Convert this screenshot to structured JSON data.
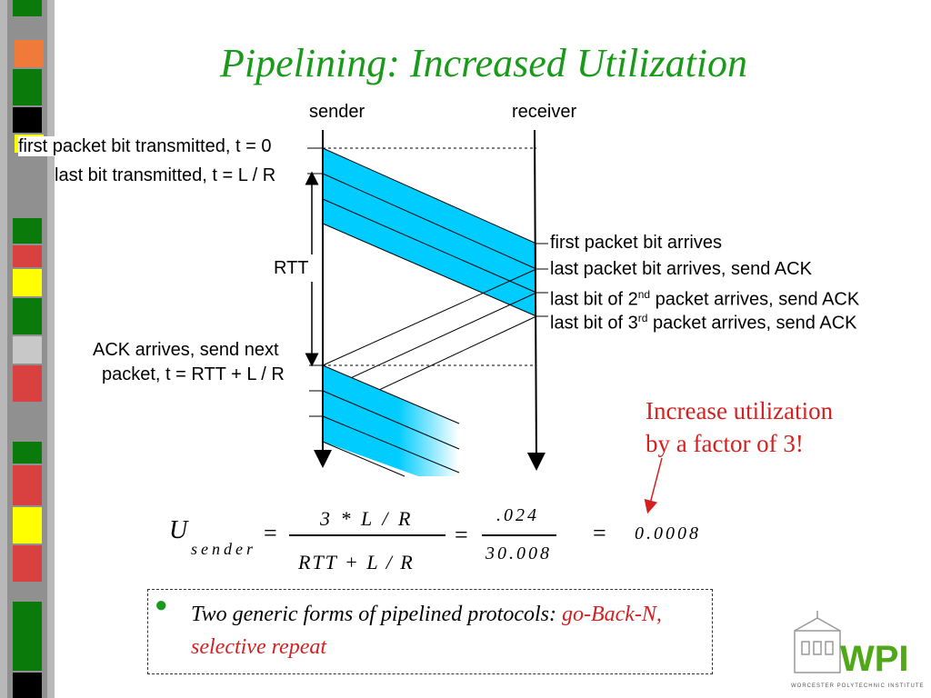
{
  "title": "Pipelining: Increased Utilization",
  "sender_label": "sender",
  "receiver_label": "receiver",
  "left_labels": {
    "first_bit": "first packet bit transmitted, t = 0",
    "last_bit": "last bit transmitted, t = L / R",
    "rtt": "RTT",
    "ack_line1": "ACK arrives, send next",
    "ack_line2": "packet, t = RTT + L / R"
  },
  "right_labels": {
    "first_arrives": "first packet bit arrives",
    "last_arrives": "last packet bit arrives, send ACK",
    "second_pre": "last bit of 2",
    "second_sup": "nd",
    "second_post": " packet arrives, send ACK",
    "third_pre": "last bit of 3",
    "third_sup": "rd",
    "third_post": " packet arrives, send ACK"
  },
  "callout": {
    "line1": "Increase utilization",
    "line2": "by a factor of 3!"
  },
  "formula": {
    "u": "U",
    "sub": "sender",
    "eq": "=",
    "num1": "3 * L / R",
    "den1": "RTT + L / R",
    "num2": ".024",
    "den2": "30.008",
    "result": "0.0008"
  },
  "note": {
    "text": "Two generic forms of pipelined protocols: ",
    "red": "go-Back-N, selective repeat"
  },
  "logo_text": "WPI",
  "logo_caption": "WORCESTER POLYTECHNIC INSTITUTE",
  "colors": {
    "title_green": "#1a9a1a",
    "packet_blue": "#00ccff",
    "callout_red": "#d42020"
  }
}
